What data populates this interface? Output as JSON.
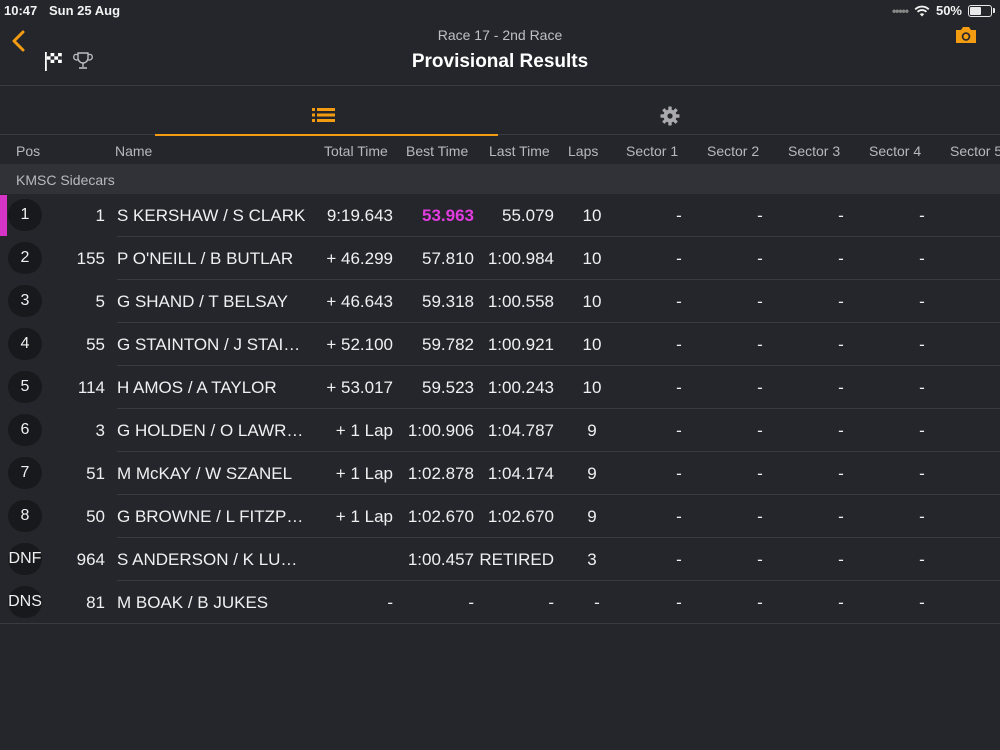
{
  "status": {
    "time": "10:47",
    "date": "Sun 25 Aug",
    "battery": "50%"
  },
  "header": {
    "subtitle": "Race 17 - 2nd Race",
    "title": "Provisional Results"
  },
  "columns": {
    "pos": "Pos",
    "name": "Name",
    "total": "Total Time",
    "best": "Best Time",
    "last": "Last Time",
    "laps": "Laps",
    "s1": "Sector 1",
    "s2": "Sector 2",
    "s3": "Sector 3",
    "s4": "Sector 4",
    "s5": "Sector 5"
  },
  "group": "KMSC Sidecars",
  "rows": [
    {
      "pos": "1",
      "num": "1",
      "name": "S KERSHAW / S CLARK",
      "total": "9:19.643",
      "best": "53.963",
      "last": "55.079",
      "laps": "10",
      "s1": "-",
      "s2": "-",
      "s3": "-",
      "s4": "-"
    },
    {
      "pos": "2",
      "num": "155",
      "name": "P O'NEILL / B BUTLAR",
      "total": "+ 46.299",
      "best": "57.810",
      "last": "1:00.984",
      "laps": "10",
      "s1": "-",
      "s2": "-",
      "s3": "-",
      "s4": "-"
    },
    {
      "pos": "3",
      "num": "5",
      "name": "G SHAND / T BELSAY",
      "total": "+ 46.643",
      "best": "59.318",
      "last": "1:00.558",
      "laps": "10",
      "s1": "-",
      "s2": "-",
      "s3": "-",
      "s4": "-"
    },
    {
      "pos": "4",
      "num": "55",
      "name": "G STAINTON / J STAI…",
      "total": "+ 52.100",
      "best": "59.782",
      "last": "1:00.921",
      "laps": "10",
      "s1": "-",
      "s2": "-",
      "s3": "-",
      "s4": "-"
    },
    {
      "pos": "5",
      "num": "114",
      "name": "H AMOS / A TAYLOR",
      "total": "+ 53.017",
      "best": "59.523",
      "last": "1:00.243",
      "laps": "10",
      "s1": "-",
      "s2": "-",
      "s3": "-",
      "s4": "-"
    },
    {
      "pos": "6",
      "num": "3",
      "name": "G HOLDEN / O LAWR…",
      "total": "+ 1 Lap",
      "best": "1:00.906",
      "last": "1:04.787",
      "laps": "9",
      "s1": "-",
      "s2": "-",
      "s3": "-",
      "s4": "-"
    },
    {
      "pos": "7",
      "num": "51",
      "name": "M McKAY / W SZANEL",
      "total": "+ 1 Lap",
      "best": "1:02.878",
      "last": "1:04.174",
      "laps": "9",
      "s1": "-",
      "s2": "-",
      "s3": "-",
      "s4": "-"
    },
    {
      "pos": "8",
      "num": "50",
      "name": "G BROWNE / L FITZP…",
      "total": "+ 1 Lap",
      "best": "1:02.670",
      "last": "1:02.670",
      "laps": "9",
      "s1": "-",
      "s2": "-",
      "s3": "-",
      "s4": "-"
    },
    {
      "pos": "DNF",
      "num": "964",
      "name": "S ANDERSON /  K LU…",
      "total": "",
      "best": "1:00.457",
      "last": "RETIRED",
      "laps": "3",
      "s1": "-",
      "s2": "-",
      "s3": "-",
      "s4": "-"
    },
    {
      "pos": "DNS",
      "num": "81",
      "name": "M BOAK / B JUKES",
      "total": "-",
      "best": "-",
      "last": "-",
      "laps": "-",
      "s1": "-",
      "s2": "-",
      "s3": "-",
      "s4": "-"
    }
  ],
  "icons": {
    "back": "back-chevron-icon",
    "flag": "checkered-flag-icon",
    "trophy": "trophy-icon",
    "camera": "camera-icon",
    "list": "list-icon",
    "settings": "gear-icon"
  },
  "colors": {
    "accent": "#f39c12",
    "fastest": "#e23be0",
    "background": "#25262b"
  }
}
